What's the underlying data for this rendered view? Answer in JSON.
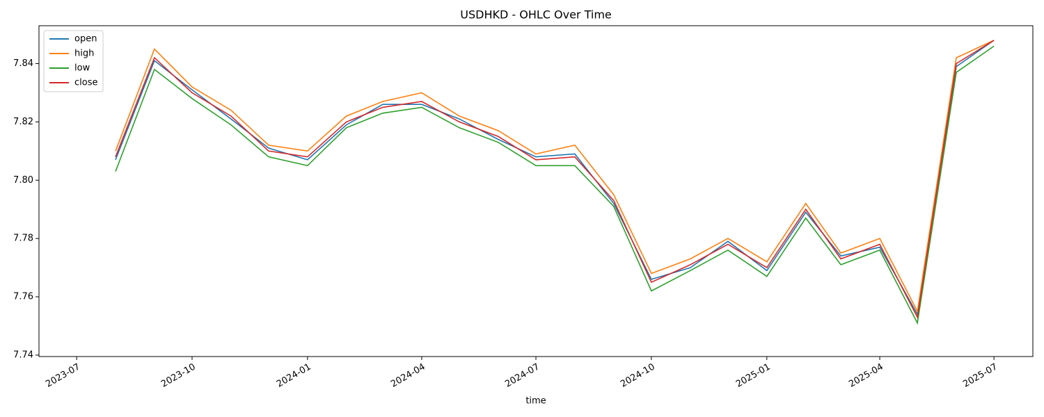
{
  "chart_data": {
    "type": "line",
    "title": "USDHKD - OHLC Over Time",
    "xlabel": "time",
    "x": [
      "2023-08",
      "2023-09",
      "2023-10",
      "2023-11",
      "2023-12",
      "2024-01",
      "2024-02",
      "2024-03",
      "2024-04",
      "2024-05",
      "2024-06",
      "2024-07",
      "2024-08",
      "2024-09",
      "2024-10",
      "2024-11",
      "2024-12",
      "2025-01",
      "2025-02",
      "2025-03",
      "2025-04",
      "2025-05",
      "2025-06",
      "2025-07"
    ],
    "series": [
      {
        "name": "open",
        "color": "#1f77b4",
        "values": [
          7.807,
          7.841,
          7.831,
          7.821,
          7.811,
          7.807,
          7.819,
          7.826,
          7.826,
          7.821,
          7.814,
          7.808,
          7.809,
          7.792,
          7.766,
          7.77,
          7.779,
          7.769,
          7.789,
          7.774,
          7.777,
          7.754,
          7.839,
          7.848
        ]
      },
      {
        "name": "high",
        "color": "#ff7f0e",
        "values": [
          7.81,
          7.845,
          7.832,
          7.824,
          7.812,
          7.81,
          7.822,
          7.827,
          7.83,
          7.822,
          7.817,
          7.809,
          7.812,
          7.795,
          7.768,
          7.773,
          7.78,
          7.772,
          7.792,
          7.775,
          7.78,
          7.755,
          7.842,
          7.848
        ]
      },
      {
        "name": "low",
        "color": "#2ca02c",
        "values": [
          7.803,
          7.838,
          7.828,
          7.819,
          7.808,
          7.805,
          7.818,
          7.823,
          7.825,
          7.818,
          7.813,
          7.805,
          7.805,
          7.791,
          7.762,
          7.769,
          7.776,
          7.767,
          7.787,
          7.771,
          7.776,
          7.751,
          7.837,
          7.846
        ]
      },
      {
        "name": "close",
        "color": "#d62728",
        "values": [
          7.808,
          7.842,
          7.83,
          7.822,
          7.81,
          7.808,
          7.82,
          7.825,
          7.827,
          7.82,
          7.815,
          7.807,
          7.808,
          7.793,
          7.765,
          7.771,
          7.778,
          7.77,
          7.79,
          7.773,
          7.778,
          7.753,
          7.84,
          7.848
        ]
      }
    ],
    "xlim": [
      "2023-06",
      "2025-08"
    ],
    "xticks": [
      "2023-07",
      "2023-10",
      "2024-01",
      "2024-04",
      "2024-07",
      "2024-10",
      "2025-01",
      "2025-04",
      "2025-07"
    ],
    "ylim": [
      7.7395,
      7.853
    ],
    "yticks": [
      7.74,
      7.76,
      7.78,
      {
        "value": 7.8,
        "label": "7.80"
      },
      7.82,
      7.84
    ],
    "grid": false,
    "legend": "upper left"
  }
}
